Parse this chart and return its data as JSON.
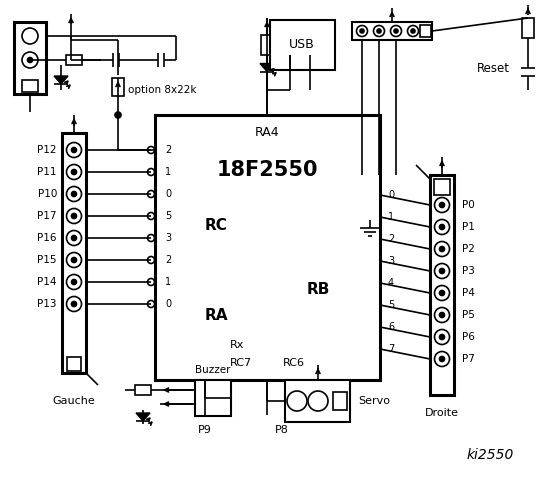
{
  "bg": "#ffffff",
  "chip_label": "18F2550",
  "chip_sub": "RA4",
  "rc_label": "RC",
  "ra_label": "RA",
  "rb_label": "RB",
  "rx_label": "Rx",
  "rc7": "RC7",
  "rc6": "RC6",
  "left_labels": [
    "P12",
    "P11",
    "P10",
    "P17",
    "P16",
    "P15",
    "P14",
    "P13"
  ],
  "right_labels": [
    "P0",
    "P1",
    "P2",
    "P3",
    "P4",
    "P5",
    "P6",
    "P7"
  ],
  "rc_pins": [
    "2",
    "1",
    "0",
    "5",
    "3",
    "2",
    "1",
    "0"
  ],
  "rb_pins": [
    "0",
    "1",
    "2",
    "3",
    "4",
    "5",
    "6",
    "7"
  ],
  "option_label": "option 8x22k",
  "reset_label": "Reset",
  "usb_label": "USB",
  "droite_label": "Droite",
  "gauche_label": "Gauche",
  "buzzer_label": "Buzzer",
  "servo_label": "Servo",
  "p9_label": "P9",
  "p8_label": "P8",
  "ki_label": "ki2550"
}
